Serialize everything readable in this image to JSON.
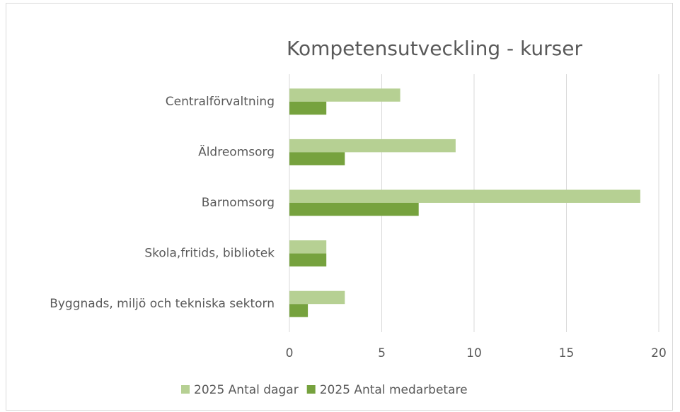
{
  "chart_data": {
    "type": "bar",
    "orientation": "horizontal",
    "title": "Kompetensutveckling - kurser",
    "categories": [
      "Centralförvaltning",
      "Äldreomsorg",
      "Barnomsorg",
      "Skola,fritids, bibliotek",
      "Byggnads, miljö och tekniska sektorn"
    ],
    "series": [
      {
        "name": "2025 Antal dagar",
        "color": "#b6d093",
        "values": [
          6,
          9,
          19,
          2,
          3
        ]
      },
      {
        "name": "2025 Antal medarbetare",
        "color": "#76a23e",
        "values": [
          2,
          3,
          7,
          2,
          1
        ]
      }
    ],
    "xlim": [
      0,
      20
    ],
    "xticks": [
      0,
      5,
      10,
      15,
      20
    ],
    "grid": true,
    "legend": "bottom"
  }
}
